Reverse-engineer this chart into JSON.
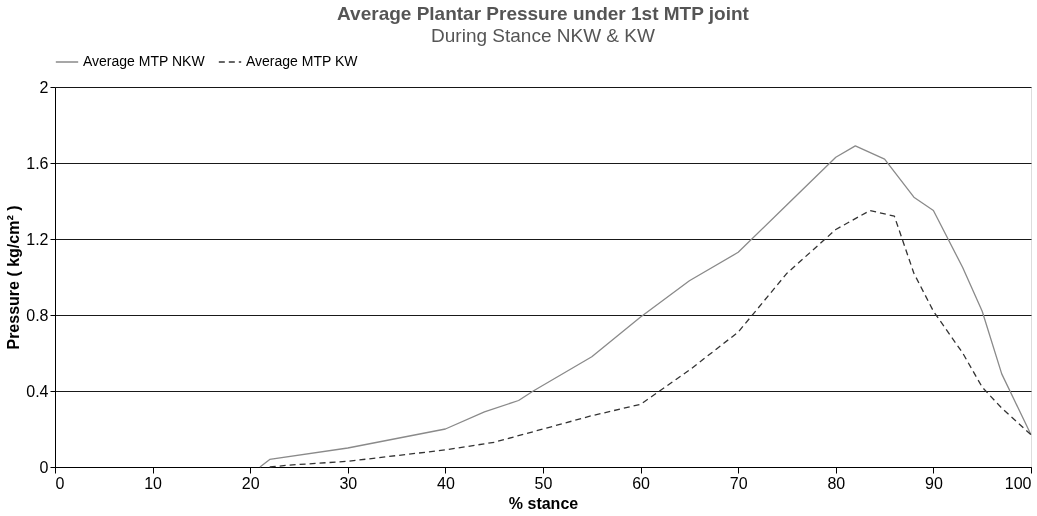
{
  "chart_data": {
    "type": "line",
    "title": "Average Plantar Pressure under 1st MTP joint",
    "subtitle": "During Stance NKW & KW",
    "xlabel": "% stance",
    "ylabel": "Pressure ( kg/cm² )",
    "xlim": [
      0,
      100
    ],
    "xticks": [
      0,
      10,
      20,
      30,
      40,
      50,
      60,
      70,
      80,
      90,
      100
    ],
    "ylim": [
      0,
      2
    ],
    "yticks": [
      0,
      0.4,
      0.8,
      1.2,
      1.6,
      2
    ],
    "grid": "y",
    "legend": "top",
    "marker": "none",
    "series": [
      {
        "name": "Average MTP NKW",
        "color": "#8a8a8a",
        "line_style": "solid",
        "x": [
          21,
          22,
          30,
          40,
          44,
          47.5,
          49,
          55,
          60,
          65,
          70,
          75,
          80,
          82,
          85,
          88,
          90,
          93,
          95,
          97,
          100
        ],
        "values": [
          0,
          0.04,
          0.1,
          0.2,
          0.29,
          0.35,
          0.4,
          0.58,
          0.79,
          0.98,
          1.13,
          1.38,
          1.63,
          1.69,
          1.62,
          1.42,
          1.35,
          1.05,
          0.82,
          0.49,
          0.17
        ]
      },
      {
        "name": "Average MTP KW",
        "color": "#333333",
        "line_style": "dashed",
        "x": [
          22,
          24,
          30,
          40,
          45,
          50,
          55,
          60,
          65,
          70,
          75,
          80,
          83.5,
          86,
          88,
          90,
          93,
          95,
          97,
          100
        ],
        "values": [
          0,
          0.01,
          0.03,
          0.09,
          0.13,
          0.2,
          0.27,
          0.33,
          0.51,
          0.71,
          1.02,
          1.25,
          1.35,
          1.32,
          1.02,
          0.82,
          0.6,
          0.42,
          0.31,
          0.17
        ]
      }
    ]
  }
}
